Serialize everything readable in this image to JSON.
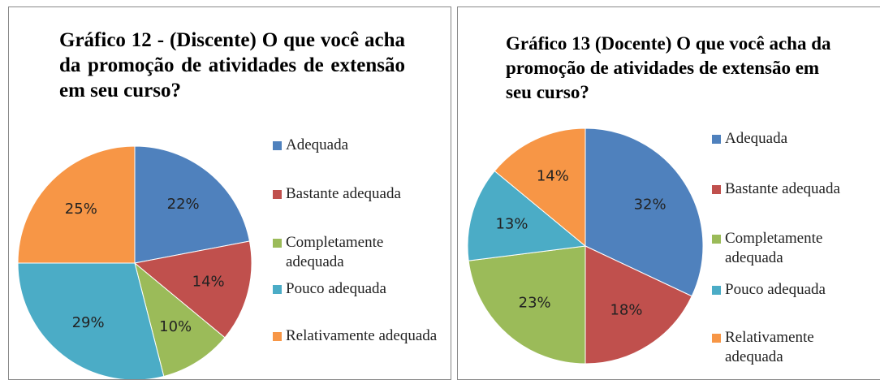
{
  "chart_data": [
    {
      "type": "pie",
      "title": "Gráfico 12 - (Discente) O que você acha da promoção de atividades de extensão em seu curso?",
      "categories": [
        "Adequada",
        "Bastante adequada",
        "Completamente adequada",
        "Pouco adequada",
        "Relativamente adequada"
      ],
      "values": [
        22,
        14,
        10,
        29,
        25
      ],
      "value_labels": [
        "22%",
        "14%",
        "10%",
        "29%",
        "25%"
      ],
      "colors": [
        "#4f81bd",
        "#c0504d",
        "#9bbb59",
        "#4bacc6",
        "#f79646"
      ]
    },
    {
      "type": "pie",
      "title": "Gráfico 13 (Docente) O que você acha da promoção de atividades de extensão em seu curso?",
      "categories": [
        "Adequada",
        "Bastante adequada",
        "Completamente adequada",
        "Pouco adequada",
        "Relativamente adequada"
      ],
      "values": [
        32,
        18,
        23,
        13,
        14
      ],
      "value_labels": [
        "32%",
        "18%",
        "23%",
        "13%",
        "14%"
      ],
      "colors": [
        "#4f81bd",
        "#c0504d",
        "#9bbb59",
        "#4bacc6",
        "#f79646"
      ]
    }
  ]
}
